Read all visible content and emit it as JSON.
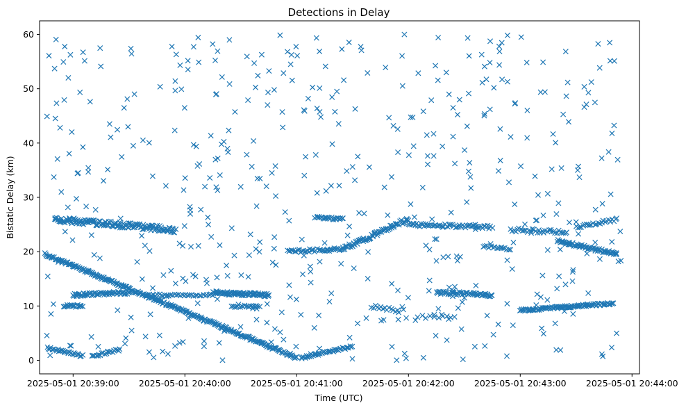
{
  "chart_data": {
    "type": "scatter",
    "title": "Detections in Delay",
    "xlabel": "Time (UTC)",
    "ylabel": "Bistatic Delay (km)",
    "marker": "x",
    "color": "#1f77b4",
    "grid": false,
    "x_start": "2025-05-01 20:38:45",
    "x_end": "2025-05-01 20:43:55",
    "xlim": [
      "2025-05-01 20:38:42",
      "2025-05-01 20:44:04"
    ],
    "ylim": [
      -2.5,
      62.5
    ],
    "x_ticks": [
      "2025-05-01 20:39:00",
      "2025-05-01 20:40:00",
      "2025-05-01 20:41:00",
      "2025-05-01 20:42:00",
      "2025-05-01 20:43:00",
      "2025-05-01 20:44:00"
    ],
    "y_ticks": [
      "0",
      "10",
      "20",
      "30",
      "40",
      "50",
      "60"
    ],
    "series": [
      {
        "values_described": "Detections (bistatic delay in km vs time). Structured tracks: descending from ~19.5 km (20:38:45) to ~0.5 km (20:41:00); rising from ~0.5 km (20:41:05) to ~2.5 km (20:41:30); band near 12 km (20:39:00–20:39:30); band near 25-26 km (20:38:50–20:39:55); band near 12.3 km (20:40:15–20:40:45); near 20 km rising to ~26 km (20:40:55–20:42:00); band near 25 km (20:42:00–20:42:45); band near 12 km (20:42:15–20:42:45); rising 9 km→10.5 km (20:43:00–20:43:50); descending 22 km→19.5 km (20:43:20–20:43:52); plus scattered clutter 0–60 km throughout."
      }
    ]
  }
}
